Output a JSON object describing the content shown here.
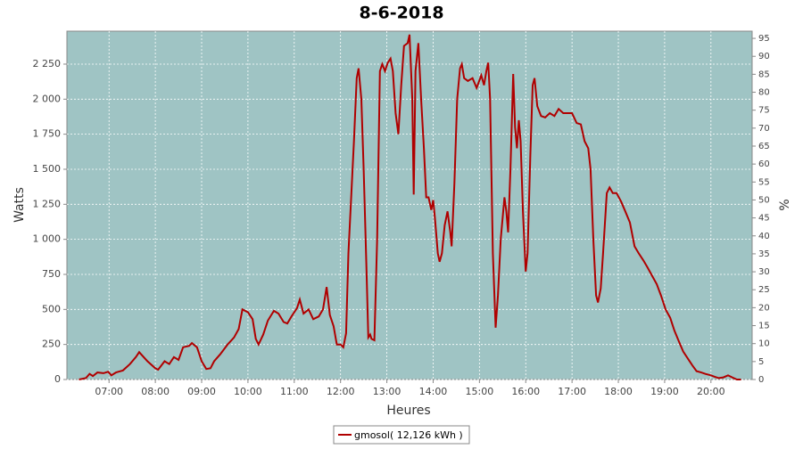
{
  "chart_data": {
    "type": "line",
    "title": "8-6-2018",
    "x_label": "Heures",
    "y_label": "Watts",
    "y2_label": "%",
    "x": [
      6.35,
      6.5,
      6.58,
      6.65,
      6.75,
      6.88,
      6.98,
      7.05,
      7.15,
      7.3,
      7.45,
      7.58,
      7.65,
      7.83,
      8.0,
      8.06,
      8.2,
      8.3,
      8.4,
      8.5,
      8.6,
      8.73,
      8.79,
      8.9,
      9.0,
      9.1,
      9.19,
      9.27,
      9.4,
      9.56,
      9.7,
      9.8,
      9.88,
      10.0,
      10.1,
      10.17,
      10.23,
      10.33,
      10.43,
      10.56,
      10.66,
      10.77,
      10.85,
      10.94,
      11.06,
      11.12,
      11.2,
      11.31,
      11.41,
      11.53,
      11.62,
      11.7,
      11.77,
      11.85,
      11.92,
      12.0,
      12.06,
      12.12,
      12.17,
      12.23,
      12.29,
      12.35,
      12.39,
      12.45,
      12.5,
      12.56,
      12.6,
      12.64,
      12.67,
      12.73,
      12.79,
      12.85,
      12.9,
      12.96,
      13.02,
      13.08,
      13.13,
      13.19,
      13.25,
      13.31,
      13.37,
      13.45,
      13.49,
      13.55,
      13.58,
      13.62,
      13.68,
      13.74,
      13.8,
      13.85,
      13.9,
      13.96,
      14.0,
      14.04,
      14.1,
      14.14,
      14.19,
      14.25,
      14.31,
      14.37,
      14.4,
      14.46,
      14.52,
      14.58,
      14.62,
      14.67,
      14.75,
      14.85,
      14.94,
      15.04,
      15.1,
      15.15,
      15.19,
      15.23,
      15.29,
      15.35,
      15.4,
      15.46,
      15.54,
      15.58,
      15.62,
      15.67,
      15.73,
      15.77,
      15.81,
      15.85,
      15.89,
      15.94,
      16.0,
      16.04,
      16.1,
      16.15,
      16.19,
      16.25,
      16.33,
      16.42,
      16.52,
      16.62,
      16.71,
      16.81,
      16.9,
      17.0,
      17.1,
      17.19,
      17.27,
      17.35,
      17.4,
      17.46,
      17.52,
      17.56,
      17.62,
      17.67,
      17.75,
      17.81,
      17.88,
      17.96,
      18.06,
      18.15,
      18.25,
      18.35,
      18.44,
      18.54,
      18.63,
      18.73,
      18.83,
      18.92,
      19.02,
      19.12,
      19.21,
      19.31,
      19.4,
      19.5,
      19.6,
      19.69,
      19.79,
      19.88,
      20.0,
      20.08,
      20.17,
      20.27,
      20.37,
      20.46,
      20.56,
      20.65
    ],
    "series": [
      {
        "name": "gmosol( 12,126 kWh )",
        "color": "#b00000",
        "values": [
          0,
          10,
          40,
          25,
          50,
          45,
          55,
          30,
          50,
          65,
          110,
          160,
          195,
          130,
          80,
          70,
          130,
          110,
          160,
          140,
          230,
          240,
          260,
          230,
          130,
          75,
          80,
          130,
          180,
          250,
          300,
          360,
          500,
          480,
          430,
          290,
          250,
          320,
          420,
          490,
          470,
          410,
          400,
          450,
          510,
          570,
          470,
          500,
          430,
          450,
          500,
          660,
          460,
          380,
          250,
          250,
          230,
          330,
          900,
          1300,
          1700,
          2150,
          2220,
          2000,
          1500,
          800,
          300,
          320,
          290,
          280,
          1000,
          2200,
          2250,
          2200,
          2260,
          2290,
          2200,
          1900,
          1750,
          2100,
          2380,
          2400,
          2460,
          2000,
          1320,
          2200,
          2400,
          2000,
          1650,
          1300,
          1300,
          1210,
          1280,
          1150,
          900,
          840,
          900,
          1100,
          1200,
          1050,
          950,
          1400,
          2000,
          2220,
          2250,
          2150,
          2130,
          2150,
          2080,
          2170,
          2100,
          2200,
          2260,
          2000,
          900,
          370,
          600,
          1000,
          1300,
          1200,
          1050,
          1500,
          2180,
          1800,
          1650,
          1850,
          1700,
          1200,
          770,
          900,
          1600,
          2100,
          2150,
          1950,
          1880,
          1870,
          1900,
          1880,
          1930,
          1900,
          1900,
          1900,
          1830,
          1820,
          1700,
          1650,
          1500,
          1000,
          600,
          550,
          650,
          900,
          1330,
          1370,
          1330,
          1330,
          1270,
          1200,
          1120,
          950,
          900,
          850,
          800,
          740,
          680,
          600,
          500,
          440,
          350,
          270,
          200,
          150,
          100,
          60,
          50,
          40,
          30,
          20,
          10,
          15,
          30,
          15,
          0,
          0
        ]
      }
    ],
    "xlim": [
      6.09,
      20.89
    ],
    "xticks": [
      {
        "value": 7,
        "label": "07:00"
      },
      {
        "value": 8,
        "label": "08:00"
      },
      {
        "value": 9,
        "label": "09:00"
      },
      {
        "value": 10,
        "label": "10:00"
      },
      {
        "value": 11,
        "label": "11:00"
      },
      {
        "value": 12,
        "label": "12:00"
      },
      {
        "value": 13,
        "label": "13:00"
      },
      {
        "value": 14,
        "label": "14:00"
      },
      {
        "value": 15,
        "label": "15:00"
      },
      {
        "value": 16,
        "label": "16:00"
      },
      {
        "value": 17,
        "label": "17:00"
      },
      {
        "value": 18,
        "label": "18:00"
      },
      {
        "value": 19,
        "label": "19:00"
      },
      {
        "value": 20,
        "label": "20:00"
      }
    ],
    "ylim": [
      0,
      2485
    ],
    "yticks": [
      0,
      250,
      500,
      750,
      {
        "value": 1000,
        "label": "1 000"
      },
      {
        "value": 1250,
        "label": "1 250"
      },
      {
        "value": 1500,
        "label": "1 500"
      },
      {
        "value": 1750,
        "label": "1 750"
      },
      {
        "value": 2000,
        "label": "2 000"
      },
      {
        "value": 2250,
        "label": "2 250"
      }
    ],
    "y2lim": [
      0,
      97
    ],
    "y2ticks": [
      0,
      5,
      10,
      15,
      20,
      25,
      30,
      35,
      40,
      45,
      50,
      55,
      60,
      65,
      70,
      75,
      80,
      85,
      90,
      95
    ],
    "grid": true,
    "legend": "bottom"
  }
}
